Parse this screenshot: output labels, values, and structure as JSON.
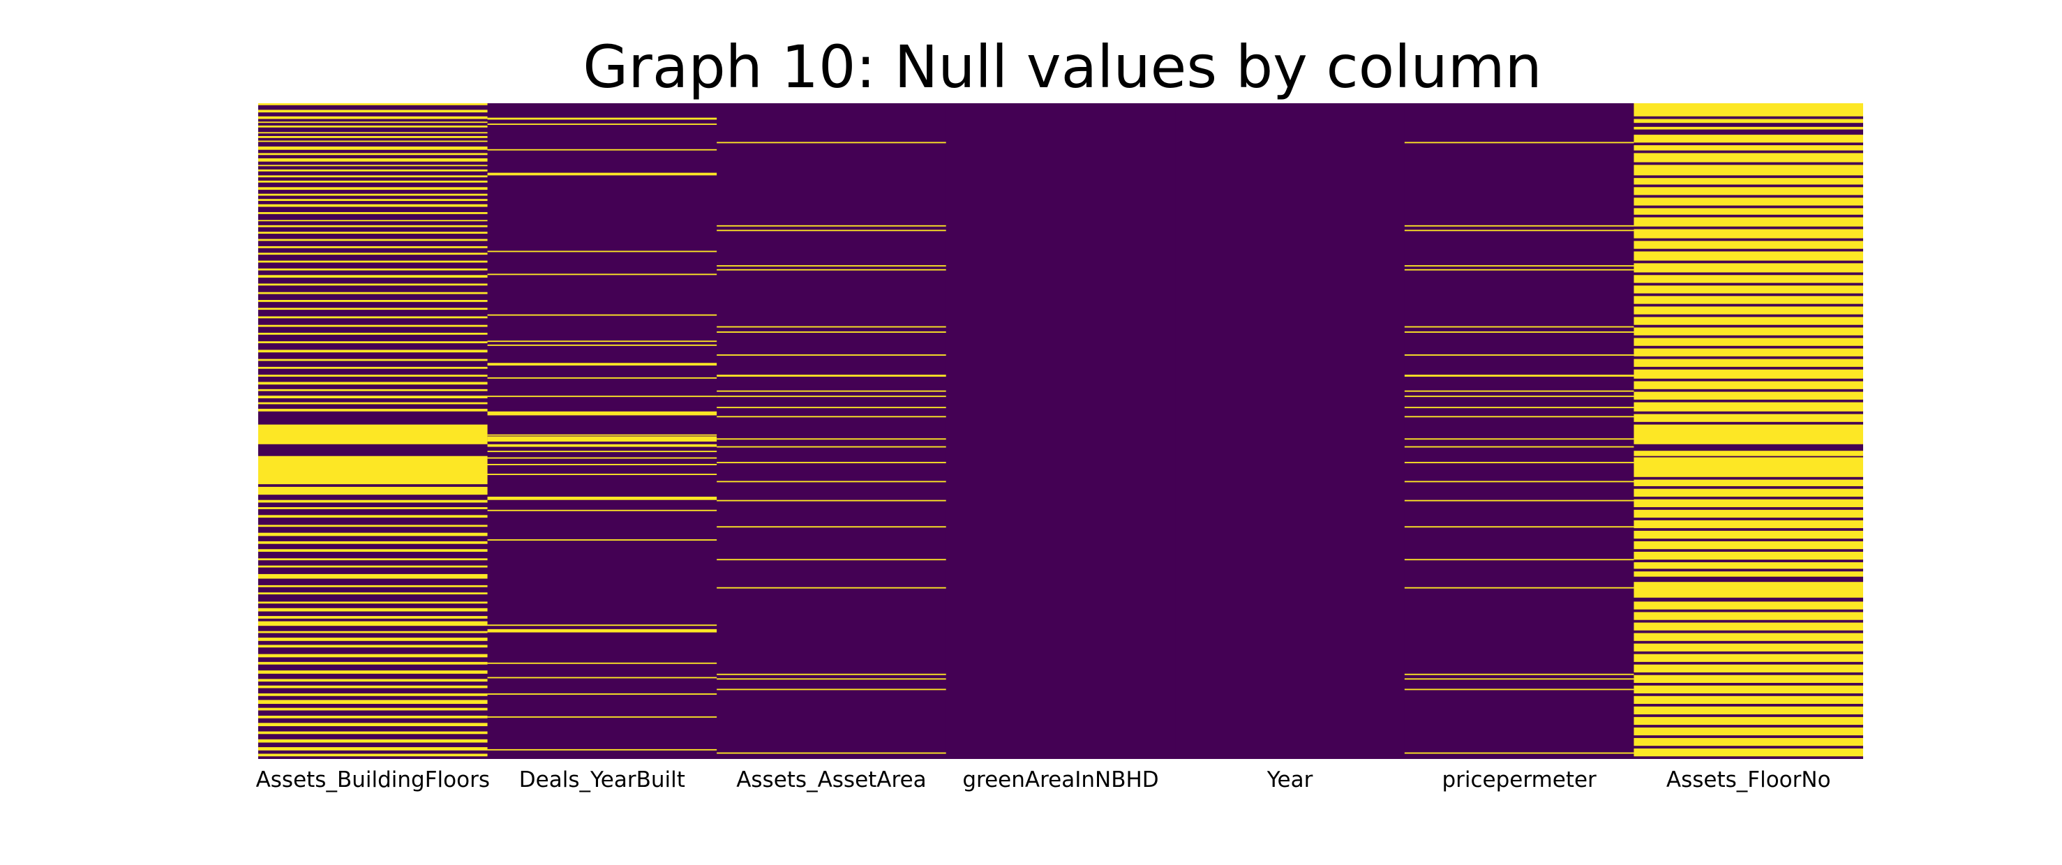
{
  "chart_data": {
    "type": "heatmap",
    "title": "Graph 10: Null values by column",
    "xlabel": "",
    "ylabel": "",
    "columns": [
      "Assets_BuildingFloors",
      "Deals_YearBuilt",
      "Assets_AssetArea",
      "greenAreaInNBHD",
      "Year",
      "pricepermeter",
      "Assets_FloorNo"
    ],
    "value_meaning": {
      "0": "not null",
      "1": "null"
    },
    "colors": {
      "not_null": "#440154",
      "null": "#fde725"
    },
    "null_row_fractions": {
      "Assets_BuildingFloors": [
        [
          0.0,
          0.003
        ],
        [
          0.01,
          0.014
        ],
        [
          0.02,
          0.024
        ],
        [
          0.028,
          0.03
        ],
        [
          0.034,
          0.037
        ],
        [
          0.044,
          0.046
        ],
        [
          0.05,
          0.053
        ],
        [
          0.057,
          0.059
        ],
        [
          0.066,
          0.071
        ],
        [
          0.076,
          0.079
        ],
        [
          0.084,
          0.089
        ],
        [
          0.094,
          0.096
        ],
        [
          0.101,
          0.104
        ],
        [
          0.11,
          0.113
        ],
        [
          0.118,
          0.121
        ],
        [
          0.128,
          0.132
        ],
        [
          0.138,
          0.141
        ],
        [
          0.146,
          0.149
        ],
        [
          0.154,
          0.158
        ],
        [
          0.166,
          0.169
        ],
        [
          0.178,
          0.18
        ],
        [
          0.186,
          0.189
        ],
        [
          0.196,
          0.199
        ],
        [
          0.207,
          0.21
        ],
        [
          0.218,
          0.221
        ],
        [
          0.228,
          0.231
        ],
        [
          0.24,
          0.243
        ],
        [
          0.252,
          0.255
        ],
        [
          0.262,
          0.266
        ],
        [
          0.275,
          0.278
        ],
        [
          0.288,
          0.291
        ],
        [
          0.3,
          0.303
        ],
        [
          0.312,
          0.315
        ],
        [
          0.325,
          0.328
        ],
        [
          0.338,
          0.341
        ],
        [
          0.35,
          0.353
        ],
        [
          0.363,
          0.366
        ],
        [
          0.376,
          0.38
        ],
        [
          0.39,
          0.393
        ],
        [
          0.402,
          0.405
        ],
        [
          0.414,
          0.417
        ],
        [
          0.425,
          0.429
        ],
        [
          0.436,
          0.439
        ],
        [
          0.446,
          0.45
        ],
        [
          0.456,
          0.459
        ],
        [
          0.466,
          0.47
        ],
        [
          0.49,
          0.52
        ],
        [
          0.538,
          0.581
        ],
        [
          0.585,
          0.597
        ],
        [
          0.605,
          0.609
        ],
        [
          0.616,
          0.619
        ],
        [
          0.628,
          0.632
        ],
        [
          0.643,
          0.646
        ],
        [
          0.655,
          0.66
        ],
        [
          0.668,
          0.672
        ],
        [
          0.68,
          0.684
        ],
        [
          0.694,
          0.697
        ],
        [
          0.705,
          0.708
        ],
        [
          0.718,
          0.725
        ],
        [
          0.735,
          0.738
        ],
        [
          0.746,
          0.749
        ],
        [
          0.76,
          0.763
        ],
        [
          0.77,
          0.775
        ],
        [
          0.782,
          0.786
        ],
        [
          0.79,
          0.797
        ],
        [
          0.805,
          0.808
        ],
        [
          0.815,
          0.82
        ],
        [
          0.826,
          0.83
        ],
        [
          0.84,
          0.845
        ],
        [
          0.852,
          0.856
        ],
        [
          0.865,
          0.87
        ],
        [
          0.878,
          0.882
        ],
        [
          0.888,
          0.892
        ],
        [
          0.9,
          0.904
        ],
        [
          0.91,
          0.916
        ],
        [
          0.922,
          0.926
        ],
        [
          0.934,
          0.938
        ],
        [
          0.945,
          0.95
        ],
        [
          0.958,
          0.962
        ],
        [
          0.97,
          0.975
        ],
        [
          0.982,
          0.987
        ],
        [
          0.992,
          0.996
        ]
      ],
      "Deals_YearBuilt": [
        [
          0.022,
          0.025
        ],
        [
          0.031,
          0.033
        ],
        [
          0.07,
          0.072
        ],
        [
          0.106,
          0.11
        ],
        [
          0.225,
          0.227
        ],
        [
          0.26,
          0.262
        ],
        [
          0.322,
          0.324
        ],
        [
          0.362,
          0.364
        ],
        [
          0.368,
          0.37
        ],
        [
          0.396,
          0.4
        ],
        [
          0.418,
          0.42
        ],
        [
          0.446,
          0.448
        ],
        [
          0.47,
          0.476
        ],
        [
          0.505,
          0.507
        ],
        [
          0.508,
          0.516
        ],
        [
          0.52,
          0.524
        ],
        [
          0.53,
          0.532
        ],
        [
          0.54,
          0.542
        ],
        [
          0.55,
          0.552
        ],
        [
          0.565,
          0.567
        ],
        [
          0.6,
          0.605
        ],
        [
          0.62,
          0.622
        ],
        [
          0.665,
          0.667
        ],
        [
          0.795,
          0.797
        ],
        [
          0.802,
          0.807
        ],
        [
          0.853,
          0.855
        ],
        [
          0.875,
          0.877
        ],
        [
          0.9,
          0.902
        ],
        [
          0.935,
          0.937
        ],
        [
          0.985,
          0.987
        ]
      ],
      "Assets_AssetArea": [
        [
          0.059,
          0.061
        ],
        [
          0.186,
          0.188
        ],
        [
          0.193,
          0.195
        ],
        [
          0.247,
          0.249
        ],
        [
          0.253,
          0.255
        ],
        [
          0.34,
          0.342
        ],
        [
          0.348,
          0.35
        ],
        [
          0.383,
          0.385
        ],
        [
          0.414,
          0.417
        ],
        [
          0.438,
          0.44
        ],
        [
          0.446,
          0.448
        ],
        [
          0.463,
          0.465
        ],
        [
          0.477,
          0.479
        ],
        [
          0.511,
          0.513
        ],
        [
          0.523,
          0.525
        ],
        [
          0.547,
          0.549
        ],
        [
          0.576,
          0.578
        ],
        [
          0.605,
          0.607
        ],
        [
          0.645,
          0.647
        ],
        [
          0.695,
          0.697
        ],
        [
          0.738,
          0.74
        ],
        [
          0.87,
          0.872
        ],
        [
          0.877,
          0.879
        ],
        [
          0.893,
          0.895
        ],
        [
          0.99,
          0.992
        ]
      ],
      "greenAreaInNBHD": [],
      "Year": [],
      "pricepermeter": [
        [
          0.059,
          0.061
        ],
        [
          0.186,
          0.188
        ],
        [
          0.193,
          0.195
        ],
        [
          0.247,
          0.249
        ],
        [
          0.253,
          0.255
        ],
        [
          0.34,
          0.342
        ],
        [
          0.348,
          0.35
        ],
        [
          0.383,
          0.385
        ],
        [
          0.414,
          0.417
        ],
        [
          0.438,
          0.44
        ],
        [
          0.446,
          0.448
        ],
        [
          0.463,
          0.465
        ],
        [
          0.477,
          0.479
        ],
        [
          0.511,
          0.513
        ],
        [
          0.523,
          0.525
        ],
        [
          0.547,
          0.549
        ],
        [
          0.576,
          0.578
        ],
        [
          0.605,
          0.607
        ],
        [
          0.645,
          0.647
        ],
        [
          0.695,
          0.697
        ],
        [
          0.738,
          0.74
        ],
        [
          0.87,
          0.872
        ],
        [
          0.877,
          0.879
        ],
        [
          0.893,
          0.895
        ],
        [
          0.99,
          0.992
        ]
      ],
      "Assets_FloorNo": [
        [
          0.0,
          0.02
        ],
        [
          0.024,
          0.03
        ],
        [
          0.036,
          0.04
        ],
        [
          0.048,
          0.06
        ],
        [
          0.064,
          0.072
        ],
        [
          0.076,
          0.09
        ],
        [
          0.094,
          0.11
        ],
        [
          0.114,
          0.124
        ],
        [
          0.128,
          0.14
        ],
        [
          0.144,
          0.156
        ],
        [
          0.16,
          0.17
        ],
        [
          0.174,
          0.188
        ],
        [
          0.192,
          0.206
        ],
        [
          0.21,
          0.222
        ],
        [
          0.226,
          0.24
        ],
        [
          0.244,
          0.258
        ],
        [
          0.262,
          0.274
        ],
        [
          0.278,
          0.29
        ],
        [
          0.294,
          0.306
        ],
        [
          0.31,
          0.322
        ],
        [
          0.326,
          0.338
        ],
        [
          0.342,
          0.354
        ],
        [
          0.358,
          0.37
        ],
        [
          0.374,
          0.386
        ],
        [
          0.39,
          0.402
        ],
        [
          0.406,
          0.42
        ],
        [
          0.424,
          0.436
        ],
        [
          0.44,
          0.452
        ],
        [
          0.456,
          0.47
        ],
        [
          0.474,
          0.486
        ],
        [
          0.49,
          0.52
        ],
        [
          0.53,
          0.538
        ],
        [
          0.54,
          0.57
        ],
        [
          0.574,
          0.584
        ],
        [
          0.588,
          0.6
        ],
        [
          0.604,
          0.616
        ],
        [
          0.62,
          0.632
        ],
        [
          0.636,
          0.648
        ],
        [
          0.652,
          0.664
        ],
        [
          0.668,
          0.68
        ],
        [
          0.684,
          0.696
        ],
        [
          0.7,
          0.71
        ],
        [
          0.714,
          0.722
        ],
        [
          0.73,
          0.738
        ],
        [
          0.736,
          0.754
        ],
        [
          0.76,
          0.772
        ],
        [
          0.776,
          0.788
        ],
        [
          0.792,
          0.804
        ],
        [
          0.808,
          0.82
        ],
        [
          0.824,
          0.836
        ],
        [
          0.84,
          0.852
        ],
        [
          0.856,
          0.868
        ],
        [
          0.872,
          0.884
        ],
        [
          0.888,
          0.9
        ],
        [
          0.904,
          0.916
        ],
        [
          0.92,
          0.932
        ],
        [
          0.936,
          0.948
        ],
        [
          0.952,
          0.964
        ],
        [
          0.968,
          0.98
        ],
        [
          0.984,
          0.996
        ]
      ]
    }
  }
}
